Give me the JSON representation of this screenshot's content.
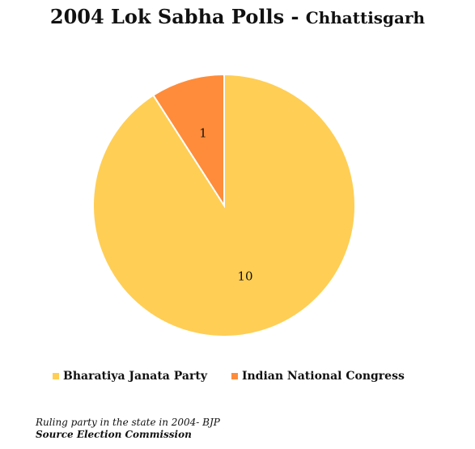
{
  "title": {
    "main": "2004 Lok Sabha Polls",
    "separator": " - ",
    "sub": "Chhattisgarh"
  },
  "chart_data": {
    "type": "pie",
    "categories": [
      "Bharatiya Janata Party",
      "Indian National Congress"
    ],
    "values": [
      10,
      1
    ],
    "data_labels": [
      "10",
      "1"
    ],
    "colors": [
      "#FFCE54",
      "#FF8C3A"
    ],
    "legend_position": "bottom"
  },
  "legend": {
    "items": [
      {
        "label": "Bharatiya Janata Party",
        "color": "#FFCE54"
      },
      {
        "label": "Indian National Congress",
        "color": "#FF8C3A"
      }
    ]
  },
  "notes": {
    "ruling": "Ruling party in the state in 2004- BJP",
    "source": "Source Election Commission"
  }
}
